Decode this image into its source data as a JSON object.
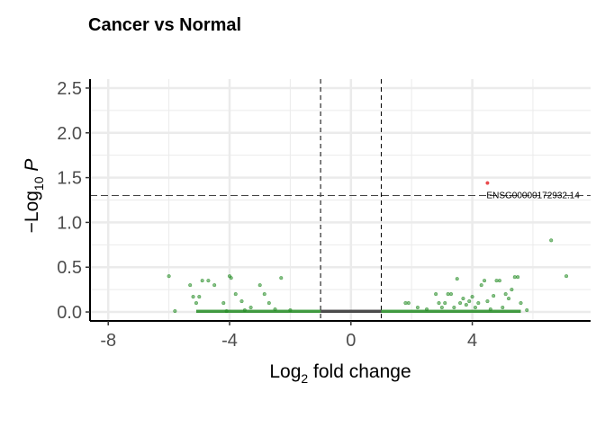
{
  "chart_data": {
    "type": "scatter",
    "title": "Cancer vs Normal",
    "xlabel": "Log",
    "xlabel_sub": "2",
    "xlabel_rest": " fold change",
    "ylabel": "−Log",
    "ylabel_sub": "10",
    "ylabel_rest": " P",
    "xlim": [
      -8.6,
      7.9
    ],
    "ylim": [
      -0.1,
      2.6
    ],
    "x_ticks": [
      -8,
      -4,
      0,
      4
    ],
    "x_tick_labels": [
      "-8",
      "-4",
      "0",
      "4"
    ],
    "y_ticks": [
      0.0,
      0.5,
      1.0,
      1.5,
      2.0,
      2.5
    ],
    "y_tick_labels": [
      "0.0",
      "0.5",
      "1.0",
      "1.5",
      "2.0",
      "2.5"
    ],
    "grid": true,
    "thresholds": {
      "log2fc": [
        -1,
        1
      ],
      "neg_log10_p": 1.3
    },
    "colors": {
      "ns": "#3a3a3a",
      "log2fc": "#228b22",
      "p_and_log2fc": "#e8383b",
      "grid": "#ebebeb"
    },
    "highlight": {
      "label": "ENSG00000172932.14",
      "x": 4.5,
      "y": 1.44
    },
    "series": [
      {
        "group": "log2fc",
        "points": [
          [
            -6.0,
            0.4
          ],
          [
            -5.8,
            0.01
          ],
          [
            -5.3,
            0.3
          ],
          [
            -5.2,
            0.17
          ],
          [
            -5.0,
            0.17
          ],
          [
            -5.1,
            0.1
          ],
          [
            -4.9,
            0.35
          ],
          [
            -4.7,
            0.35
          ],
          [
            -4.5,
            0.3
          ],
          [
            -4.2,
            0.1
          ],
          [
            -4.1,
            0.01
          ],
          [
            -4.0,
            0.4
          ],
          [
            -3.95,
            0.38
          ],
          [
            -3.8,
            0.2
          ],
          [
            -3.6,
            0.12
          ],
          [
            -3.5,
            0.02
          ],
          [
            -3.3,
            0.05
          ],
          [
            -3.0,
            0.3
          ],
          [
            -2.85,
            0.2
          ],
          [
            -2.7,
            0.1
          ],
          [
            -2.5,
            0.03
          ],
          [
            -2.3,
            0.38
          ],
          [
            -2.0,
            0.02
          ],
          [
            1.8,
            0.1
          ],
          [
            1.9,
            0.1
          ],
          [
            2.2,
            0.05
          ],
          [
            2.5,
            0.03
          ],
          [
            2.8,
            0.2
          ],
          [
            2.9,
            0.1
          ],
          [
            3.0,
            0.05
          ],
          [
            3.1,
            0.1
          ],
          [
            3.2,
            0.2
          ],
          [
            3.3,
            0.2
          ],
          [
            3.4,
            0.05
          ],
          [
            3.5,
            0.37
          ],
          [
            3.6,
            0.1
          ],
          [
            3.7,
            0.15
          ],
          [
            3.8,
            0.08
          ],
          [
            3.9,
            0.12
          ],
          [
            4.0,
            0.17
          ],
          [
            4.1,
            0.05
          ],
          [
            4.2,
            0.1
          ],
          [
            4.3,
            0.3
          ],
          [
            4.4,
            0.35
          ],
          [
            4.5,
            0.12
          ],
          [
            4.6,
            0.03
          ],
          [
            4.7,
            0.18
          ],
          [
            4.8,
            0.35
          ],
          [
            4.9,
            0.35
          ],
          [
            5.0,
            0.05
          ],
          [
            5.1,
            0.2
          ],
          [
            5.2,
            0.15
          ],
          [
            5.3,
            0.25
          ],
          [
            5.4,
            0.39
          ],
          [
            5.5,
            0.39
          ],
          [
            5.6,
            0.1
          ],
          [
            5.8,
            0.02
          ],
          [
            6.6,
            0.8
          ],
          [
            7.1,
            0.4
          ]
        ]
      },
      {
        "group": "p_and_log2fc",
        "points": [
          [
            4.5,
            1.44
          ]
        ]
      }
    ]
  }
}
